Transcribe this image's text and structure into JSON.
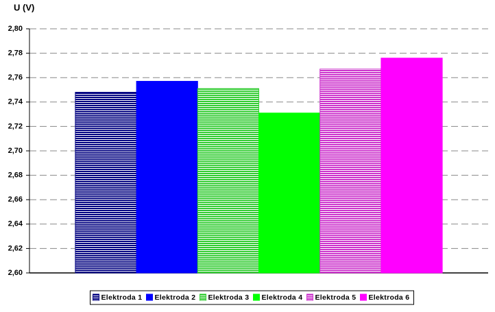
{
  "chart_data": {
    "type": "bar",
    "y_label": "U (V)",
    "categories": [
      null
    ],
    "series": [
      {
        "name": "Elektroda 1",
        "color": "#000080",
        "pattern": "striped",
        "values": [
          2.748
        ]
      },
      {
        "name": "Elektroda 2",
        "color": "#0000ff",
        "pattern": "solid",
        "values": [
          2.757
        ]
      },
      {
        "name": "Elektroda 3",
        "color": "#33cc33",
        "pattern": "striped",
        "values": [
          2.751
        ]
      },
      {
        "name": "Elektroda 4",
        "color": "#00ff00",
        "pattern": "solid",
        "values": [
          2.731
        ]
      },
      {
        "name": "Elektroda 5",
        "color": "#cc33cc",
        "pattern": "striped",
        "values": [
          2.767
        ]
      },
      {
        "name": "Elektroda 6",
        "color": "#ff00ff",
        "pattern": "solid",
        "values": [
          2.776
        ]
      }
    ],
    "ylim": [
      2.6,
      2.8
    ],
    "yticks": [
      {
        "value": 2.6,
        "label": "2,60"
      },
      {
        "value": 2.62,
        "label": "2,62"
      },
      {
        "value": 2.64,
        "label": "2,64"
      },
      {
        "value": 2.66,
        "label": "2,66"
      },
      {
        "value": 2.68,
        "label": "2,68"
      },
      {
        "value": 2.7,
        "label": "2,70"
      },
      {
        "value": 2.72,
        "label": "2,72"
      },
      {
        "value": 2.74,
        "label": "2,74"
      },
      {
        "value": 2.76,
        "label": "2,76"
      },
      {
        "value": 2.78,
        "label": "2,78"
      },
      {
        "value": 2.8,
        "label": "2,80"
      }
    ],
    "grid": true,
    "legend": "bottom"
  }
}
